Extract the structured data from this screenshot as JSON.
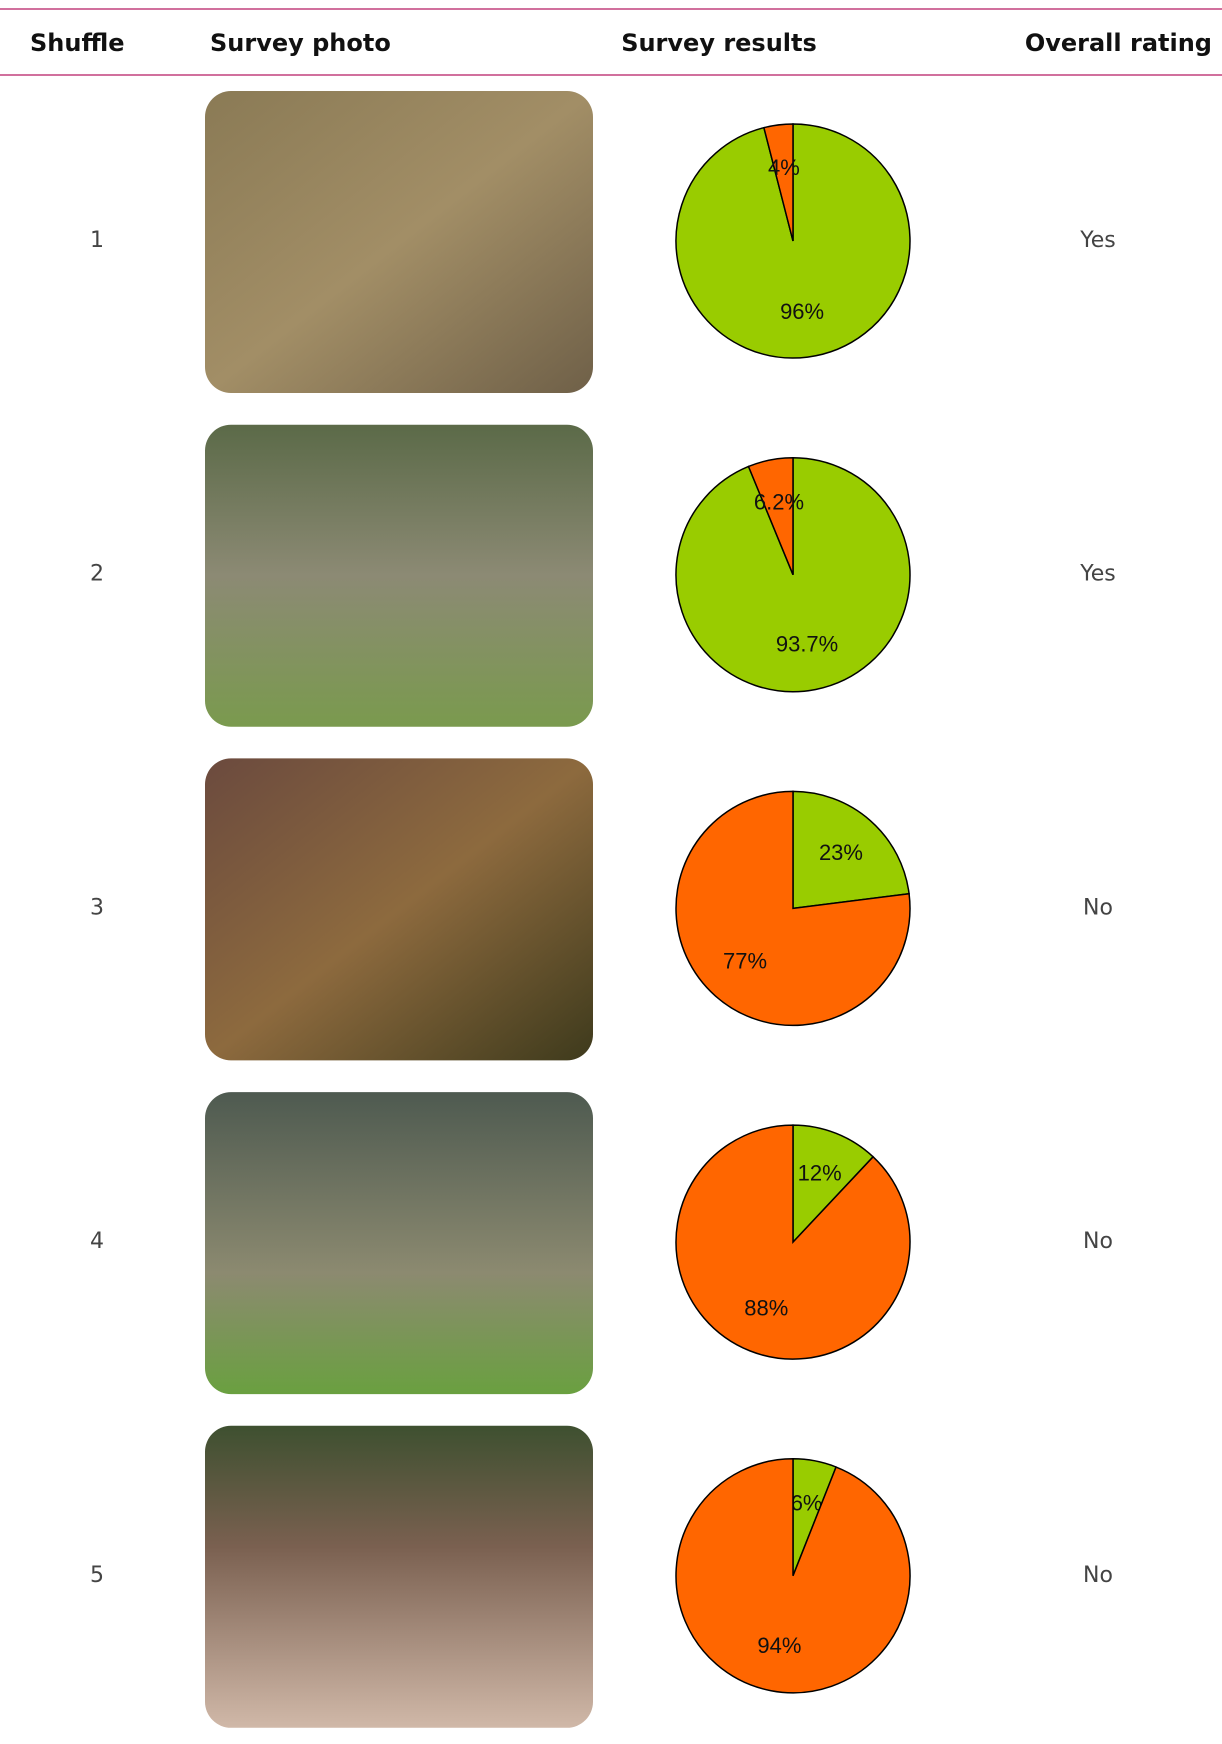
{
  "table": {
    "columns": [
      "Shuffle",
      "Survey photo",
      "Survey results",
      "Overall rating"
    ],
    "rows": [
      {
        "shuffle": "1",
        "survey_results": {
          "type": "pie",
          "values": [
            96,
            4
          ],
          "value_labels": [
            "96%",
            "4%"
          ],
          "colors": [
            "#99cc00",
            "#ff6600"
          ]
        },
        "rating": "Yes"
      },
      {
        "shuffle": "2",
        "survey_results": {
          "type": "pie",
          "values": [
            93.7,
            6.2
          ],
          "value_labels": [
            "93.7%",
            "6.2%"
          ],
          "colors": [
            "#99cc00",
            "#ff6600"
          ]
        },
        "rating": "Yes"
      },
      {
        "shuffle": "3",
        "survey_results": {
          "type": "pie",
          "values": [
            23,
            77
          ],
          "value_labels": [
            "23%",
            "77%"
          ],
          "colors": [
            "#99cc00",
            "#ff6600"
          ]
        },
        "rating": "No"
      },
      {
        "shuffle": "4",
        "survey_results": {
          "type": "pie",
          "values": [
            12,
            88
          ],
          "value_labels": [
            "12%",
            "88%"
          ],
          "colors": [
            "#99cc00",
            "#ff6600"
          ]
        },
        "rating": "No"
      },
      {
        "shuffle": "5",
        "survey_results": {
          "type": "pie",
          "values": [
            6,
            94
          ],
          "value_labels": [
            "6%",
            "94%"
          ],
          "colors": [
            "#99cc00",
            "#ff6600"
          ]
        },
        "rating": "No"
      }
    ]
  }
}
